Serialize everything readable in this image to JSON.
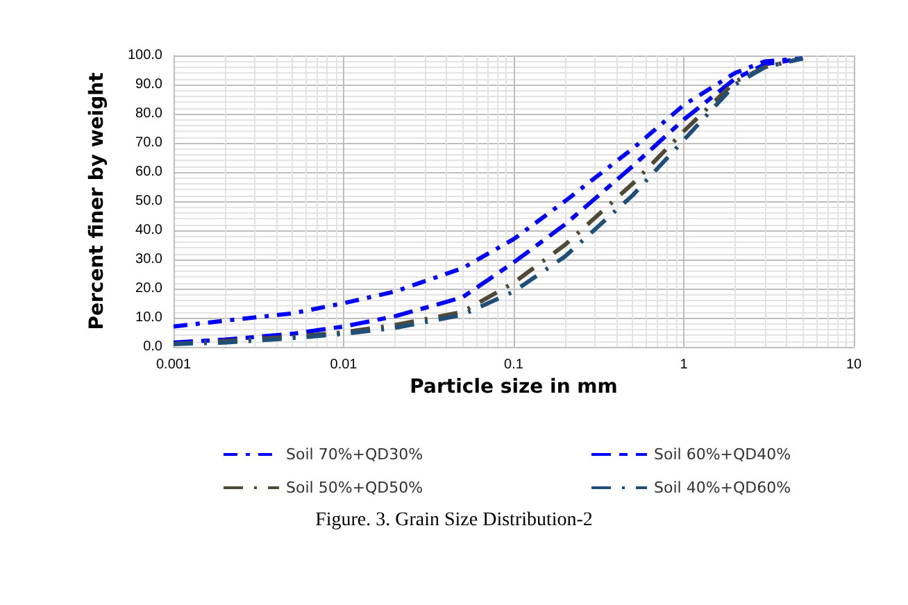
{
  "chart_data": {
    "type": "line",
    "xlabel": "Particle size in mm",
    "ylabel": "Percent finer by weight",
    "annotations": [
      "Figure. 3. Grain Size Distribution-2"
    ],
    "x": [
      0.001,
      0.002,
      0.005,
      0.01,
      0.02,
      0.05,
      0.1,
      0.2,
      0.5,
      1,
      2,
      3,
      5
    ],
    "series": [
      {
        "name": "Soil 70%+QD30%",
        "color": "#0000ff",
        "values": [
          7,
          9,
          11.5,
          15,
          19,
          27,
          37,
          50,
          68,
          83,
          94,
          98,
          99
        ]
      },
      {
        "name": "Soil 60%+QD40%",
        "color": "#0000ff",
        "values": [
          1.5,
          2.5,
          4.5,
          7,
          10.5,
          17,
          29,
          42,
          62,
          78,
          92,
          97,
          99
        ]
      },
      {
        "name": "Soil 50%+QD50%",
        "color": "#4f4a36",
        "values": [
          1,
          2,
          3.5,
          5,
          7.5,
          12,
          22,
          35,
          56,
          74,
          91,
          96,
          99
        ]
      },
      {
        "name": "Soil 40%+QD60%",
        "color": "#1f4e79",
        "values": [
          1,
          1.5,
          3,
          4.5,
          6.5,
          11,
          19,
          31,
          52,
          71,
          90,
          96,
          99
        ]
      }
    ],
    "xlim": [
      0.001,
      10
    ],
    "xticks": [
      0.001,
      0.01,
      0.1,
      1,
      10
    ],
    "ylim": [
      0,
      100
    ],
    "yticks": [
      {
        "value": 0,
        "label": "0.0"
      },
      {
        "value": 10,
        "label": "10.0"
      },
      {
        "value": 20,
        "label": "20.0"
      },
      {
        "value": 30,
        "label": "30.0"
      },
      {
        "value": 40,
        "label": "40.0"
      },
      {
        "value": 50,
        "label": "50.0"
      },
      {
        "value": 60,
        "label": "60.0"
      },
      {
        "value": 70,
        "label": "70.0"
      },
      {
        "value": 80,
        "label": "80.0"
      },
      {
        "value": 90,
        "label": "90.0"
      },
      {
        "value": 100,
        "label": "100.0"
      }
    ],
    "log": "x",
    "grid": true,
    "legend": "bottom",
    "line_style": "dashed"
  }
}
